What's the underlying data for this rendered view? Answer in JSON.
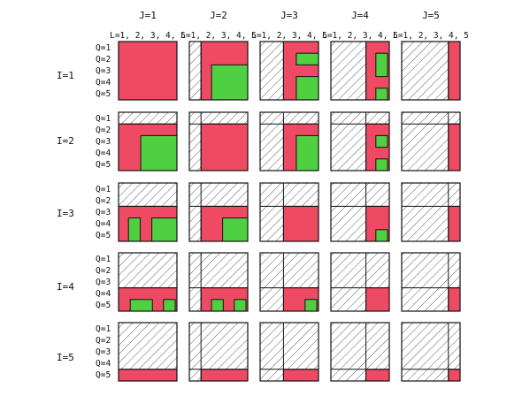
{
  "columns": [
    {
      "label": "J=1",
      "sublabel": "L=1, 2, 3, 4, 5"
    },
    {
      "label": "J=2",
      "sublabel": "L=1, 2, 3, 4, 5"
    },
    {
      "label": "J=3",
      "sublabel": "L=1, 2, 3, 4, 5"
    },
    {
      "label": "J=4",
      "sublabel": "L=1, 2, 3, 4, 5"
    },
    {
      "label": "J=5",
      "sublabel": "L=1, 2, 3, 4, 5"
    }
  ],
  "rows": [
    {
      "label": "I=1",
      "q_labels": [
        "Q=1",
        "Q=2",
        "Q=3",
        "Q=4",
        "Q=5"
      ]
    },
    {
      "label": "I=2",
      "q_labels": [
        "Q=1",
        "Q=2",
        "Q=3",
        "Q=4",
        "Q=5"
      ]
    },
    {
      "label": "I=3",
      "q_labels": [
        "Q=1",
        "Q=2",
        "Q=3",
        "Q=4",
        "Q=5"
      ]
    },
    {
      "label": "I=4",
      "q_labels": [
        "Q=1",
        "Q=2",
        "Q=3",
        "Q=4",
        "Q=5"
      ]
    },
    {
      "label": "I=5",
      "q_labels": [
        "Q=1",
        "Q=2",
        "Q=3",
        "Q=4",
        "Q=5"
      ]
    }
  ],
  "colors": {
    "red": "#ee4a63",
    "green": "#4fd041",
    "hatch": "#333333",
    "border": "#111111"
  }
}
